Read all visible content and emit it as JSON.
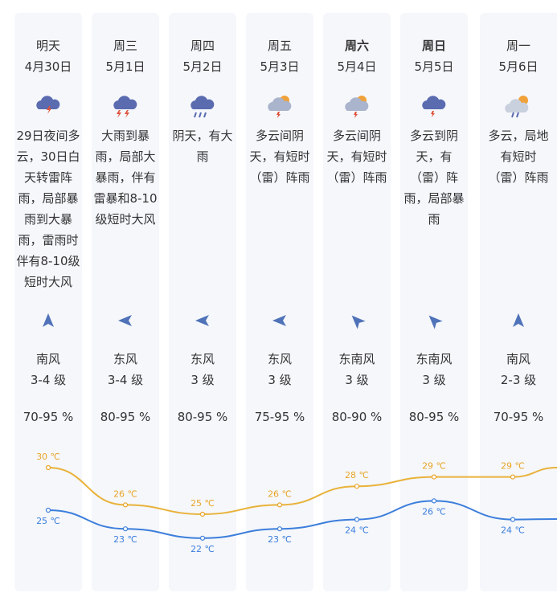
{
  "days": [
    {
      "weekday": "明天",
      "date": "4月30日",
      "weather_icon": "thunderstorm-icon",
      "desc": [
        "29日夜间多",
        "云，30日白",
        "天转雷阵",
        "雨，局部暴",
        "雨到大暴",
        "雨，雷雨时",
        "伴有8-10级",
        "短时大风"
      ],
      "wind_dir": "南风",
      "wind_level": "3-4 级",
      "humidity": "70-95 %",
      "high": "30 ℃",
      "low": "25 ℃"
    },
    {
      "weekday": "周三",
      "date": "5月1日",
      "weather_icon": "heavy-thunderstorm-icon",
      "desc": [
        "大雨到暴",
        "雨，局部大",
        "暴雨，伴有",
        "雷暴和8-10",
        "级短时大风"
      ],
      "wind_dir": "东风",
      "wind_level": "3-4 级",
      "humidity": "80-95 %",
      "high": "26 ℃",
      "low": "23 ℃"
    },
    {
      "weekday": "周四",
      "date": "5月2日",
      "weather_icon": "rain-icon",
      "desc": [
        "阴天，有大",
        "雨"
      ],
      "wind_dir": "东风",
      "wind_level": "3 级",
      "humidity": "80-95 %",
      "high": "25 ℃",
      "low": "22 ℃"
    },
    {
      "weekday": "周五",
      "date": "5月3日",
      "weather_icon": "sun-cloud-thunder-icon",
      "desc": [
        "多云间阴",
        "天，有短时",
        "（雷）阵雨"
      ],
      "wind_dir": "东风",
      "wind_level": "3 级",
      "humidity": "75-95 %",
      "high": "26 ℃",
      "low": "23 ℃"
    },
    {
      "weekday": "周六",
      "date": "5月4日",
      "weather_icon": "sun-cloud-thunder-icon",
      "desc": [
        "多云间阴",
        "天，有短时",
        "（雷）阵雨"
      ],
      "wind_dir": "东南风",
      "wind_level": "3 级",
      "humidity": "80-90 %",
      "high": "28 ℃",
      "low": "24 ℃"
    },
    {
      "weekday": "周日",
      "date": "5月5日",
      "weather_icon": "cloud-thunder-icon",
      "desc": [
        "多云到阴",
        "天，有",
        "（雷）阵",
        "雨，局部暴",
        "雨"
      ],
      "wind_dir": "东南风",
      "wind_level": "3 级",
      "humidity": "80-95 %",
      "high": "29 ℃",
      "low": "26 ℃"
    },
    {
      "weekday": "周一",
      "date": "5月6日",
      "weather_icon": "sun-cloud-rain-icon",
      "desc": [
        "多云，局地",
        "有短时",
        "（雷）阵雨"
      ],
      "wind_dir": "南风",
      "wind_level": "2-3 级",
      "humidity": "70-95 %",
      "high": "29 ℃",
      "low": "24 ℃"
    }
  ],
  "chart_data": {
    "type": "line",
    "categories": [
      "4月30日",
      "5月1日",
      "5月2日",
      "5月3日",
      "5月4日",
      "5月5日",
      "5月6日"
    ],
    "series": [
      {
        "values": [
          30,
          26,
          25,
          26,
          28,
          29,
          29
        ]
      },
      {
        "values": [
          25,
          23,
          22,
          23,
          24,
          26,
          24
        ]
      }
    ],
    "colors": {
      "high": "#e9a528",
      "low": "#3c7edb"
    }
  }
}
